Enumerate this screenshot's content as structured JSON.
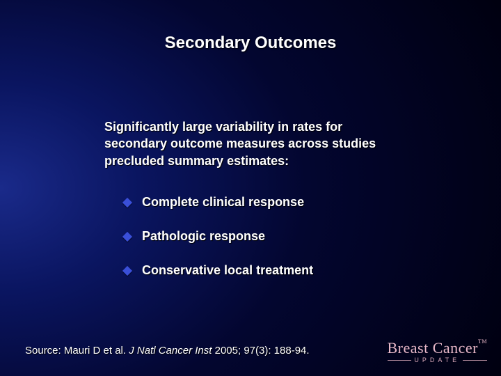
{
  "title": "Secondary Outcomes",
  "intro": "Significantly large variability in rates for secondary outcome measures across studies precluded summary estimates:",
  "bullets": [
    "Complete clinical response",
    "Pathologic response",
    "Conservative local treatment"
  ],
  "source_prefix": "Source: Mauri D et al. ",
  "source_journal": "J Natl Cancer Inst ",
  "source_suffix": "2005; 97(3): 188-94.",
  "logo_main": "Breast Cancer",
  "logo_tm": "TM",
  "logo_sub": "UPDATE",
  "colors": {
    "text": "#ffffff",
    "diamond": "#3a4fd8",
    "logo": "#e8b8c8"
  }
}
